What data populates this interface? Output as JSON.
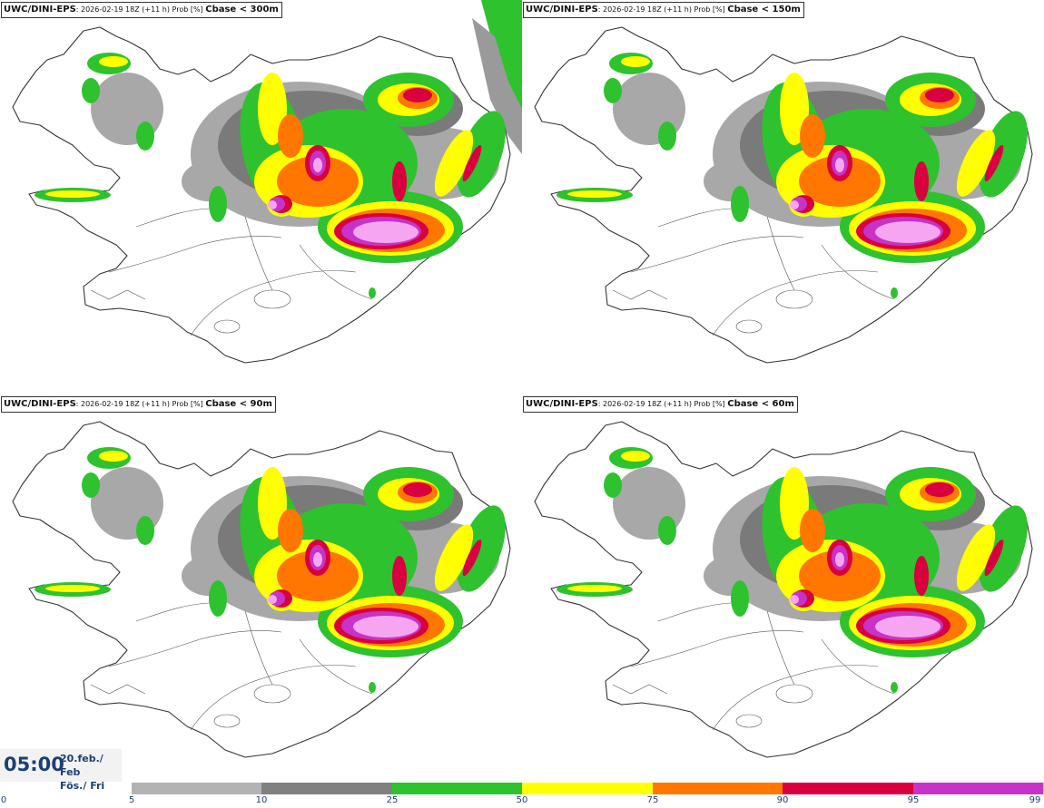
{
  "panels": [
    {
      "model": "UWC/DINI-EPS",
      "info": ": 2026-02-19 18Z (+11 h) Prob [%]",
      "variable": "Cbase < 300m"
    },
    {
      "model": "UWC/DINI-EPS",
      "info": ": 2026-02-19 18Z (+11 h) Prob [%]",
      "variable": "Cbase < 150m"
    },
    {
      "model": "UWC/DINI-EPS",
      "info": ": 2026-02-19 18Z (+11 h) Prob [%]",
      "variable": "Cbase < 90m"
    },
    {
      "model": "UWC/DINI-EPS",
      "info": ": 2026-02-19 18Z (+11 h) Prob [%]",
      "variable": "Cbase < 60m"
    }
  ],
  "valid_time": {
    "time": "05:00",
    "date_line1": "20.feb./ Feb",
    "date_line2": "Fös./ Fri"
  },
  "legend": {
    "ticks": [
      "0",
      "5",
      "10",
      "25",
      "50",
      "75",
      "90",
      "95",
      "99"
    ],
    "colors": [
      "#b3b3b3",
      "#808080",
      "#2ec22e",
      "#ffff00",
      "#ff7700",
      "#d9003f",
      "#c633c6",
      "#f6a6f0"
    ]
  }
}
